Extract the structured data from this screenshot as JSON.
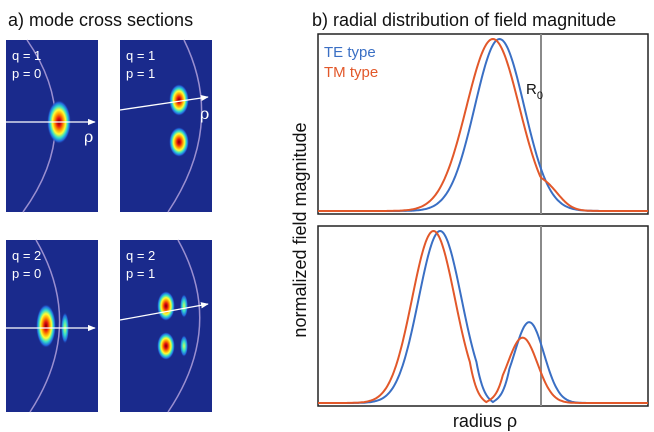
{
  "titles": {
    "panel_a": "a) mode cross sections",
    "panel_b": "b) radial distribution of field magnitude"
  },
  "mode_panels": [
    {
      "q_label": "q = 1",
      "p_label": "p = 0",
      "rho": "ρ"
    },
    {
      "q_label": "q = 1",
      "p_label": "p = 1",
      "rho": "ρ"
    },
    {
      "q_label": "q = 2",
      "p_label": "p = 0",
      "rho": ""
    },
    {
      "q_label": "q = 2",
      "p_label": "p = 1",
      "rho": ""
    }
  ],
  "legend": {
    "te": "TE type",
    "tm": "TM type"
  },
  "marker": {
    "label": "R",
    "subscript": "0"
  },
  "axes": {
    "ylabel": "normalized field magnitude",
    "xlabel": "radius ρ"
  },
  "colors": {
    "te": "#3a6fc4",
    "tm": "#e2582a",
    "marker": "#8a8a8a",
    "mode_bg": "#1a2a8c"
  },
  "chart_data": [
    {
      "type": "line",
      "panel": "top",
      "series": [
        {
          "name": "TE type",
          "peak_fraction": 0.55,
          "width_fraction": 0.075
        },
        {
          "name": "TM type",
          "peak_fraction": 0.53,
          "width_fraction": 0.08
        }
      ],
      "r0_fraction": 0.675
    },
    {
      "type": "line",
      "panel": "bottom",
      "series": [
        {
          "name": "TE type",
          "lobe1_fraction": 0.37,
          "node_fraction": 0.53,
          "lobe2_fraction": 0.64,
          "lobe2_rel": 0.47
        },
        {
          "name": "TM type",
          "lobe1_fraction": 0.35,
          "node_fraction": 0.51,
          "lobe2_fraction": 0.62,
          "lobe2_rel": 0.38
        }
      ],
      "r0_fraction": 0.675
    }
  ]
}
